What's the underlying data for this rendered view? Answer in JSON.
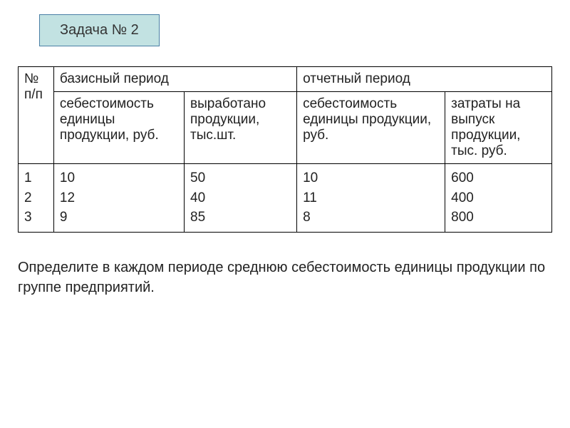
{
  "task_badge": "Задача № 2",
  "table": {
    "header_row1": {
      "np": "№ п/п",
      "base_period": "базисный период",
      "report_period": "отчетный период"
    },
    "header_row2": {
      "col_a": "себестоимость единицы продукции, руб.",
      "col_b": "выработано продукции, тыс.шт.",
      "col_c": "себестоимость единицы продукции, руб.",
      "col_d": "затраты на выпуск продукции, тыс. руб."
    },
    "rows": {
      "np": [
        "1",
        "2",
        "3"
      ],
      "col_a": [
        "10",
        "12",
        "9"
      ],
      "col_b": [
        "50",
        "40",
        "85"
      ],
      "col_c": [
        "10",
        "11",
        "8"
      ],
      "col_d": [
        "600",
        "400",
        "800"
      ]
    }
  },
  "instruction": "Определите в каждом периоде среднюю себестоимость единицы продукции по группе предприятий.",
  "colors": {
    "badge_bg": "#c2e2e2",
    "badge_border": "#4a7fa5",
    "text": "#222222",
    "border": "#000000",
    "background": "#ffffff"
  }
}
